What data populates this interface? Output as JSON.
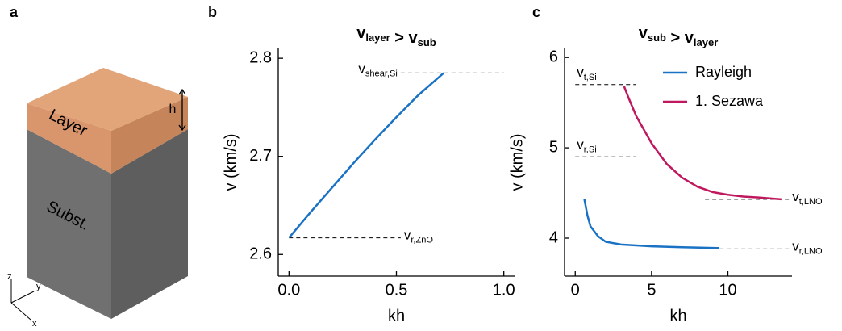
{
  "panels": [
    "a",
    "b",
    "c"
  ],
  "diagram": {
    "layer": "Layer",
    "substrate": "Subst.",
    "thickness": "h",
    "axes": [
      "z",
      "y",
      "x"
    ]
  },
  "chart_data": [
    {
      "type": "line",
      "title": [
        {
          "text": "v",
          "sub": "layer"
        },
        {
          "text": " > "
        },
        {
          "text": "v",
          "sub": "sub"
        }
      ],
      "xlabel": "kh",
      "ylabel": "v (km/s)",
      "xlim": [
        -0.05,
        1.05
      ],
      "ylim": [
        2.578,
        2.81
      ],
      "xticks": [
        {
          "value": 0,
          "label": "0.0"
        },
        0.5,
        {
          "value": 1,
          "label": "1.0"
        }
      ],
      "yticks": [
        2.6,
        2.7,
        2.8
      ],
      "series": [
        {
          "color": "#1a72c4",
          "x": [
            0,
            0.1,
            0.2,
            0.3,
            0.4,
            0.5,
            0.6,
            0.72
          ],
          "values": [
            2.617,
            2.643,
            2.668,
            2.693,
            2.717,
            2.74,
            2.762,
            2.785
          ]
        }
      ],
      "reference_lines": [
        {
          "y": 2.785,
          "x": [
            0.52,
            1.0
          ],
          "label": {
            "text": "v",
            "sub": "shear,Si"
          },
          "side": "left"
        },
        {
          "y": 2.617,
          "x": [
            0,
            0.52
          ],
          "label": {
            "text": "v",
            "sub": "r,ZnO"
          },
          "side": "right"
        }
      ]
    },
    {
      "type": "line",
      "title": [
        {
          "text": "v",
          "sub": "sub"
        },
        {
          "text": " > "
        },
        {
          "text": "v",
          "sub": "layer"
        }
      ],
      "xlabel": "kh",
      "ylabel": "v (km/s)",
      "xlim": [
        -0.7,
        14.2
      ],
      "ylim": [
        3.58,
        6.1
      ],
      "xticks": [
        0,
        5,
        10
      ],
      "yticks": [
        4,
        5,
        6
      ],
      "legend": "upper right",
      "series": [
        {
          "name": "Rayleigh",
          "color": "#1a72c4",
          "x": [
            0.6,
            0.8,
            1.0,
            1.5,
            2,
            3,
            5,
            7,
            9.4
          ],
          "values": [
            4.43,
            4.25,
            4.13,
            4.02,
            3.96,
            3.93,
            3.91,
            3.9,
            3.89
          ]
        },
        {
          "name": "1. Sezawa",
          "color": "#c0185f",
          "x": [
            3.2,
            3.5,
            4,
            5,
            6,
            7,
            8,
            9,
            10,
            11,
            12,
            13.5
          ],
          "values": [
            5.68,
            5.55,
            5.35,
            5.05,
            4.82,
            4.67,
            4.57,
            4.51,
            4.48,
            4.46,
            4.45,
            4.43
          ]
        }
      ],
      "reference_lines": [
        {
          "y": 5.7,
          "x": [
            0,
            4
          ],
          "label": {
            "text": "v",
            "sub": "t,Si"
          },
          "side": "above"
        },
        {
          "y": 4.9,
          "x": [
            0,
            4
          ],
          "label": {
            "text": "v",
            "sub": "r,Si"
          },
          "side": "above"
        },
        {
          "y": 4.43,
          "x": [
            8.5,
            14
          ],
          "label": {
            "text": "v",
            "sub": "t,LNO"
          },
          "side": "right"
        },
        {
          "y": 3.88,
          "x": [
            8.5,
            14
          ],
          "label": {
            "text": "v",
            "sub": "r,LNO"
          },
          "side": "right"
        }
      ]
    }
  ]
}
